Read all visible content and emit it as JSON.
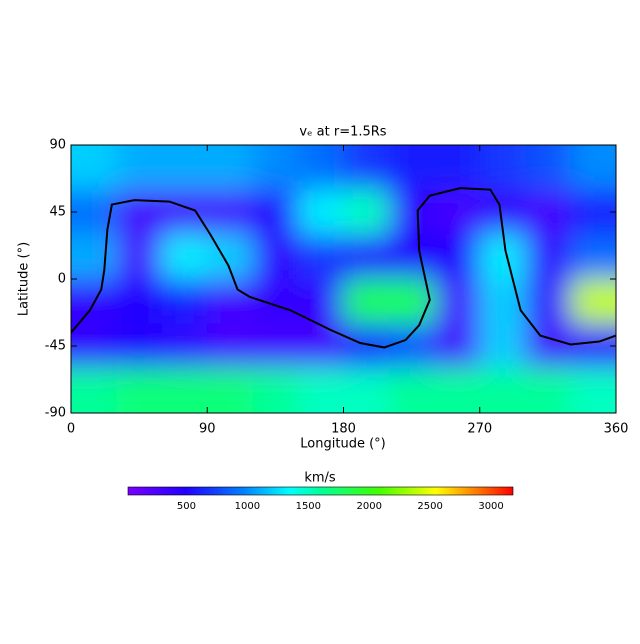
{
  "chart_data": {
    "type": "heatmap",
    "title": "vₑ at r=1.5Rs",
    "x_label": "Longitude (°)",
    "y_label": "Latitude (°)",
    "xlim": [
      0,
      360
    ],
    "xticks": [
      0,
      90,
      180,
      270,
      360
    ],
    "ylim": [
      -90,
      90
    ],
    "yticks": [
      -90,
      -45,
      0,
      45,
      90
    ],
    "x": [
      15,
      45,
      75,
      105,
      135,
      165,
      195,
      225,
      255,
      285,
      315,
      345
    ],
    "y": [
      75,
      45,
      15,
      -15,
      -45,
      -75
    ],
    "values": [
      [
        1200,
        1100,
        1100,
        1100,
        1000,
        900,
        700,
        600,
        600,
        700,
        800,
        1000
      ],
      [
        900,
        300,
        300,
        300,
        500,
        1300,
        1500,
        400,
        300,
        400,
        300,
        600
      ],
      [
        1100,
        300,
        1300,
        1200,
        400,
        700,
        500,
        500,
        500,
        1300,
        400,
        900
      ],
      [
        400,
        500,
        600,
        300,
        400,
        400,
        1800,
        1800,
        300,
        1200,
        400,
        2400
      ],
      [
        400,
        500,
        400,
        300,
        300,
        300,
        600,
        800,
        300,
        1200,
        300,
        400
      ],
      [
        1600,
        1700,
        1700,
        1700,
        1600,
        1500,
        1500,
        1600,
        1600,
        1600,
        1600,
        1500
      ]
    ],
    "colorbar_label": "km/s",
    "clim": [
      20,
      3180
    ],
    "colorbar_ticks": [
      500,
      1000,
      1500,
      2000,
      2500,
      3000
    ],
    "contour": {
      "color": "#000000",
      "x": [
        0,
        12.5,
        20,
        22,
        24,
        27,
        42,
        65,
        82,
        92,
        104,
        110,
        118,
        145,
        171,
        191,
        207,
        221,
        230,
        237,
        230,
        229,
        237,
        257,
        277,
        283,
        287,
        297,
        310,
        330,
        349,
        360
      ],
      "y": [
        -36,
        -21,
        -7,
        6,
        33,
        50,
        53,
        52,
        46,
        30,
        9,
        -7,
        -12,
        -21,
        -34,
        -43,
        -46,
        -41,
        -31,
        -14,
        19,
        46,
        56,
        61,
        60,
        50,
        19,
        -21,
        -38,
        -44,
        -42,
        -38
      ]
    }
  }
}
